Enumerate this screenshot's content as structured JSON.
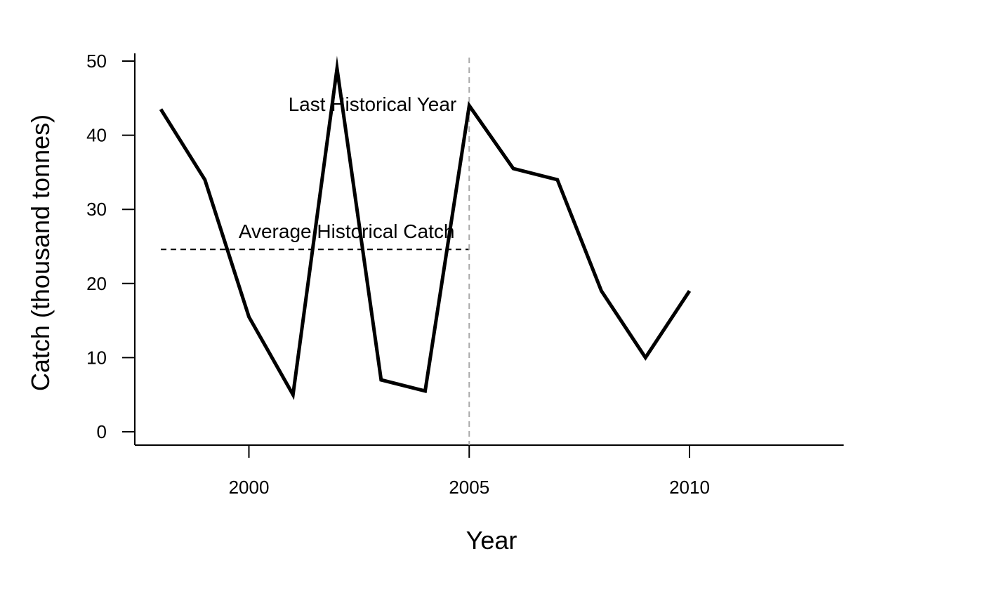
{
  "chart_data": {
    "type": "line",
    "xlabel": "Year",
    "ylabel": "Catch (thousand tonnes)",
    "xlim": [
      1997,
      2013.5
    ],
    "ylim": [
      -2,
      51
    ],
    "x_ticks": [
      2000,
      2005,
      2010
    ],
    "y_ticks": [
      0,
      10,
      20,
      30,
      40,
      50
    ],
    "grid": false,
    "series": [
      {
        "x": [
          1998,
          1999,
          2000,
          2001,
          2002,
          2003,
          2004,
          2005,
          2006,
          2007,
          2008,
          2009,
          2010
        ],
        "values": [
          43.5,
          34,
          15.5,
          5,
          49,
          7,
          5.5,
          44,
          35.5,
          34,
          19,
          10,
          19
        ],
        "color": "#000000",
        "style": "solid"
      }
    ],
    "reference_lines": [
      {
        "orientation": "horizontal",
        "value": 24.6,
        "x_range": [
          1998,
          2005
        ],
        "style": "dashed",
        "color": "#000000",
        "label": "Average Historical Catch"
      },
      {
        "orientation": "vertical",
        "value": 2005,
        "style": "dashed",
        "color": "#aaaaaa",
        "label": "Last Historical Year"
      }
    ]
  }
}
